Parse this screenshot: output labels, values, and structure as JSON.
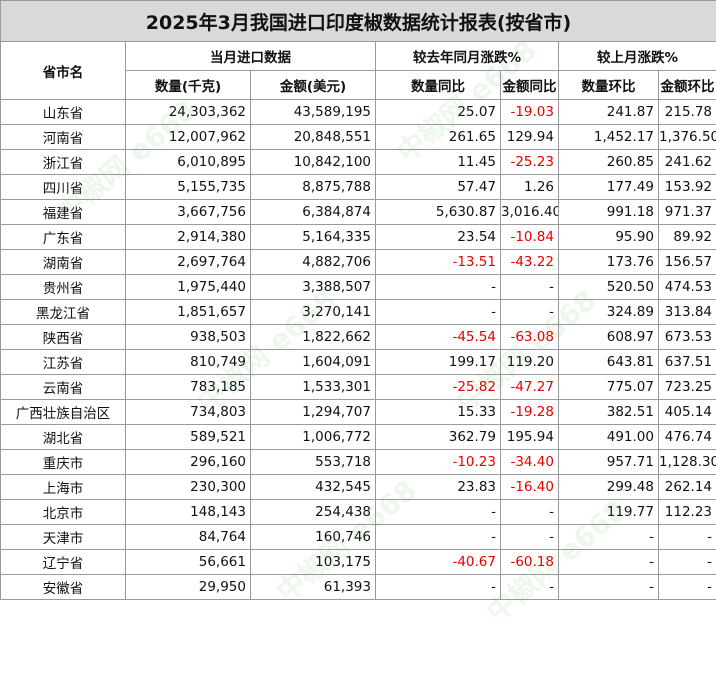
{
  "title": "2025年3月我国进口印度椒数据统计报表(按省市)",
  "headers": {
    "province": "省市名",
    "group_current": "当月进口数据",
    "group_yoy": "较去年同月涨跌%",
    "group_mom": "较上月涨跌%",
    "qty": "数量(千克)",
    "amount": "金额(美元)",
    "qty_yoy": "数量同比",
    "amt_yoy": "金额同比",
    "qty_mom": "数量环比",
    "amt_mom": "金额环比"
  },
  "watermark": "中椒网 e668",
  "colors": {
    "title_bg": "#d9d9d9",
    "negative": "#e60000",
    "watermark": "#4caf50"
  },
  "rows": [
    {
      "province": "山东省",
      "qty": "24,303,362",
      "amount": "43,589,195",
      "qty_yoy": "25.07",
      "amt_yoy": "-19.03",
      "qty_mom": "241.87",
      "amt_mom": "215.78"
    },
    {
      "province": "河南省",
      "qty": "12,007,962",
      "amount": "20,848,551",
      "qty_yoy": "261.65",
      "amt_yoy": "129.94",
      "qty_mom": "1,452.17",
      "amt_mom": "1,376.50"
    },
    {
      "province": "浙江省",
      "qty": "6,010,895",
      "amount": "10,842,100",
      "qty_yoy": "11.45",
      "amt_yoy": "-25.23",
      "qty_mom": "260.85",
      "amt_mom": "241.62"
    },
    {
      "province": "四川省",
      "qty": "5,155,735",
      "amount": "8,875,788",
      "qty_yoy": "57.47",
      "amt_yoy": "1.26",
      "qty_mom": "177.49",
      "amt_mom": "153.92"
    },
    {
      "province": "福建省",
      "qty": "3,667,756",
      "amount": "6,384,874",
      "qty_yoy": "5,630.87",
      "amt_yoy": "3,016.40",
      "qty_mom": "991.18",
      "amt_mom": "971.37"
    },
    {
      "province": "广东省",
      "qty": "2,914,380",
      "amount": "5,164,335",
      "qty_yoy": "23.54",
      "amt_yoy": "-10.84",
      "qty_mom": "95.90",
      "amt_mom": "89.92"
    },
    {
      "province": "湖南省",
      "qty": "2,697,764",
      "amount": "4,882,706",
      "qty_yoy": "-13.51",
      "amt_yoy": "-43.22",
      "qty_mom": "173.76",
      "amt_mom": "156.57"
    },
    {
      "province": "贵州省",
      "qty": "1,975,440",
      "amount": "3,388,507",
      "qty_yoy": "-",
      "amt_yoy": "-",
      "qty_mom": "520.50",
      "amt_mom": "474.53"
    },
    {
      "province": "黑龙江省",
      "qty": "1,851,657",
      "amount": "3,270,141",
      "qty_yoy": "-",
      "amt_yoy": "-",
      "qty_mom": "324.89",
      "amt_mom": "313.84"
    },
    {
      "province": "陕西省",
      "qty": "938,503",
      "amount": "1,822,662",
      "qty_yoy": "-45.54",
      "amt_yoy": "-63.08",
      "qty_mom": "608.97",
      "amt_mom": "673.53"
    },
    {
      "province": "江苏省",
      "qty": "810,749",
      "amount": "1,604,091",
      "qty_yoy": "199.17",
      "amt_yoy": "119.20",
      "qty_mom": "643.81",
      "amt_mom": "637.51"
    },
    {
      "province": "云南省",
      "qty": "783,185",
      "amount": "1,533,301",
      "qty_yoy": "-25.82",
      "amt_yoy": "-47.27",
      "qty_mom": "775.07",
      "amt_mom": "723.25"
    },
    {
      "province": "广西壮族自治区",
      "qty": "734,803",
      "amount": "1,294,707",
      "qty_yoy": "15.33",
      "amt_yoy": "-19.28",
      "qty_mom": "382.51",
      "amt_mom": "405.14"
    },
    {
      "province": "湖北省",
      "qty": "589,521",
      "amount": "1,006,772",
      "qty_yoy": "362.79",
      "amt_yoy": "195.94",
      "qty_mom": "491.00",
      "amt_mom": "476.74"
    },
    {
      "province": "重庆市",
      "qty": "296,160",
      "amount": "553,718",
      "qty_yoy": "-10.23",
      "amt_yoy": "-34.40",
      "qty_mom": "957.71",
      "amt_mom": "1,128.30"
    },
    {
      "province": "上海市",
      "qty": "230,300",
      "amount": "432,545",
      "qty_yoy": "23.83",
      "amt_yoy": "-16.40",
      "qty_mom": "299.48",
      "amt_mom": "262.14"
    },
    {
      "province": "北京市",
      "qty": "148,143",
      "amount": "254,438",
      "qty_yoy": "-",
      "amt_yoy": "-",
      "qty_mom": "119.77",
      "amt_mom": "112.23"
    },
    {
      "province": "天津市",
      "qty": "84,764",
      "amount": "160,746",
      "qty_yoy": "-",
      "amt_yoy": "-",
      "qty_mom": "-",
      "amt_mom": "-"
    },
    {
      "province": "辽宁省",
      "qty": "56,661",
      "amount": "103,175",
      "qty_yoy": "-40.67",
      "amt_yoy": "-60.18",
      "qty_mom": "-",
      "amt_mom": "-"
    },
    {
      "province": "安徽省",
      "qty": "29,950",
      "amount": "61,393",
      "qty_yoy": "-",
      "amt_yoy": "-",
      "qty_mom": "-",
      "amt_mom": "-"
    }
  ]
}
